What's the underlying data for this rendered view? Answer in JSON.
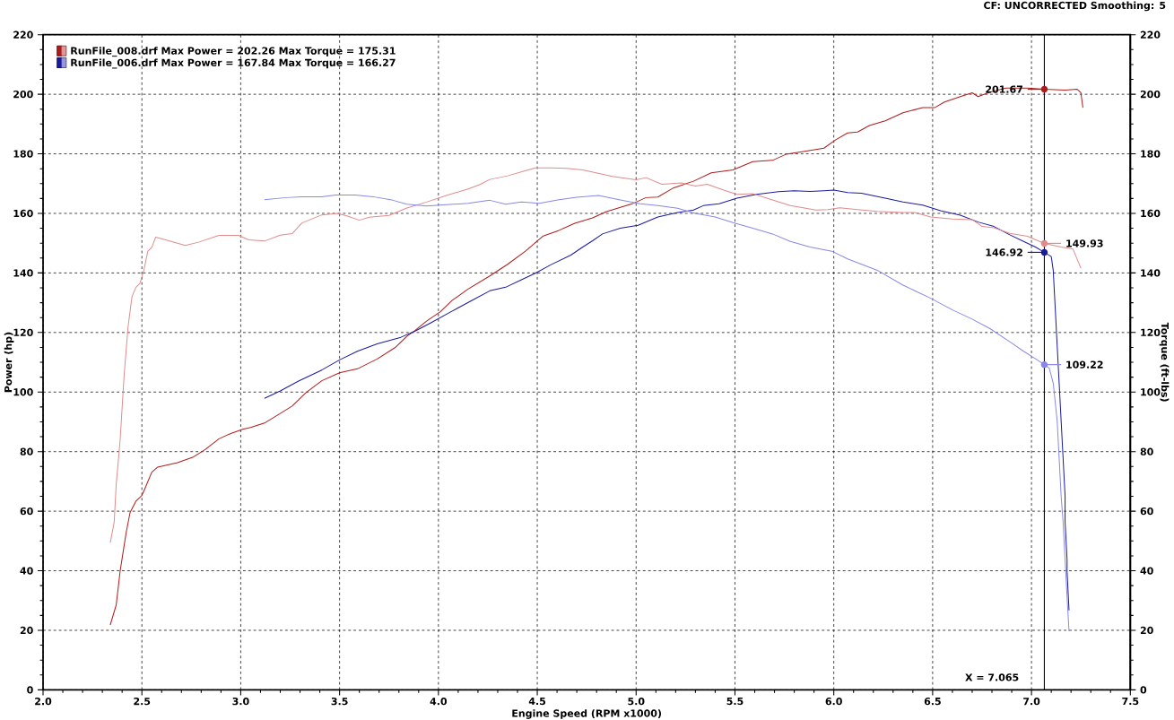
{
  "chart_data": {
    "type": "line",
    "xlabel": "Engine Speed (RPM x1000)",
    "ylabel": "Power (hp)",
    "y2label": "Torque (ft-lbs)",
    "xlim": [
      2.0,
      7.5
    ],
    "ylim": [
      0,
      220
    ],
    "y2lim": [
      0,
      220
    ],
    "xticks": [
      {
        "value": 2,
        "label": "2.0"
      },
      {
        "value": 2.1,
        "label": null
      },
      {
        "value": 2.2,
        "label": null
      },
      {
        "value": 2.3,
        "label": null
      },
      {
        "value": 2.4,
        "label": null
      },
      2.5,
      {
        "value": 2.6,
        "label": null
      },
      {
        "value": 2.7,
        "label": null
      },
      {
        "value": 2.8,
        "label": null
      },
      {
        "value": 2.9,
        "label": null
      },
      {
        "value": 3,
        "label": "3.0"
      },
      {
        "value": 3.1,
        "label": null
      },
      {
        "value": 3.2,
        "label": null
      },
      {
        "value": 3.3,
        "label": null
      },
      {
        "value": 3.4,
        "label": null
      },
      3.5,
      {
        "value": 3.6,
        "label": null
      },
      {
        "value": 3.7,
        "label": null
      },
      {
        "value": 3.8,
        "label": null
      },
      {
        "value": 3.9,
        "label": null
      },
      {
        "value": 4,
        "label": "4.0"
      },
      {
        "value": 4.1,
        "label": null
      },
      {
        "value": 4.2,
        "label": null
      },
      {
        "value": 4.3,
        "label": null
      },
      {
        "value": 4.4,
        "label": null
      },
      4.5,
      {
        "value": 4.6,
        "label": null
      },
      {
        "value": 4.7,
        "label": null
      },
      {
        "value": 4.8,
        "label": null
      },
      {
        "value": 4.9,
        "label": null
      },
      {
        "value": 5,
        "label": "5.0"
      },
      {
        "value": 5.1,
        "label": null
      },
      {
        "value": 5.2,
        "label": null
      },
      {
        "value": 5.3,
        "label": null
      },
      {
        "value": 5.4,
        "label": null
      },
      5.5,
      {
        "value": 5.6,
        "label": null
      },
      {
        "value": 5.7,
        "label": null
      },
      {
        "value": 5.8,
        "label": null
      },
      {
        "value": 5.9,
        "label": null
      },
      {
        "value": 6,
        "label": "6.0"
      },
      {
        "value": 6.1,
        "label": null
      },
      {
        "value": 6.2,
        "label": null
      },
      {
        "value": 6.3,
        "label": null
      },
      {
        "value": 6.4,
        "label": null
      },
      6.5,
      {
        "value": 6.6,
        "label": null
      },
      {
        "value": 6.7,
        "label": null
      },
      {
        "value": 6.8,
        "label": null
      },
      {
        "value": 6.9,
        "label": null
      },
      {
        "value": 7,
        "label": "7.0"
      },
      {
        "value": 7.1,
        "label": null
      },
      {
        "value": 7.2,
        "label": null
      },
      {
        "value": 7.3,
        "label": null
      },
      {
        "value": 7.4,
        "label": null
      },
      7.5
    ],
    "yticks": [
      0,
      {
        "value": 5,
        "label": null
      },
      {
        "value": 10,
        "label": null
      },
      {
        "value": 15,
        "label": null
      },
      20,
      {
        "value": 25,
        "label": null
      },
      {
        "value": 30,
        "label": null
      },
      {
        "value": 35,
        "label": null
      },
      40,
      {
        "value": 45,
        "label": null
      },
      {
        "value": 50,
        "label": null
      },
      {
        "value": 55,
        "label": null
      },
      60,
      {
        "value": 65,
        "label": null
      },
      {
        "value": 70,
        "label": null
      },
      {
        "value": 75,
        "label": null
      },
      80,
      {
        "value": 85,
        "label": null
      },
      {
        "value": 90,
        "label": null
      },
      {
        "value": 95,
        "label": null
      },
      100,
      {
        "value": 105,
        "label": null
      },
      {
        "value": 110,
        "label": null
      },
      {
        "value": 115,
        "label": null
      },
      120,
      {
        "value": 125,
        "label": null
      },
      {
        "value": 130,
        "label": null
      },
      {
        "value": 135,
        "label": null
      },
      140,
      {
        "value": 145,
        "label": null
      },
      {
        "value": 150,
        "label": null
      },
      {
        "value": 155,
        "label": null
      },
      160,
      {
        "value": 165,
        "label": null
      },
      {
        "value": 170,
        "label": null
      },
      {
        "value": 175,
        "label": null
      },
      180,
      {
        "value": 185,
        "label": null
      },
      {
        "value": 190,
        "label": null
      },
      {
        "value": 195,
        "label": null
      },
      200,
      {
        "value": 205,
        "label": null
      },
      {
        "value": 210,
        "label": null
      },
      {
        "value": 215,
        "label": null
      },
      220
    ],
    "y2ticks": [
      0,
      {
        "value": 5,
        "label": null
      },
      {
        "value": 10,
        "label": null
      },
      {
        "value": 15,
        "label": null
      },
      20,
      {
        "value": 25,
        "label": null
      },
      {
        "value": 30,
        "label": null
      },
      {
        "value": 35,
        "label": null
      },
      40,
      {
        "value": 45,
        "label": null
      },
      {
        "value": 50,
        "label": null
      },
      {
        "value": 55,
        "label": null
      },
      60,
      {
        "value": 65,
        "label": null
      },
      {
        "value": 70,
        "label": null
      },
      {
        "value": 75,
        "label": null
      },
      80,
      {
        "value": 85,
        "label": null
      },
      {
        "value": 90,
        "label": null
      },
      {
        "value": 95,
        "label": null
      },
      100,
      {
        "value": 105,
        "label": null
      },
      {
        "value": 110,
        "label": null
      },
      {
        "value": 115,
        "label": null
      },
      120,
      {
        "value": 125,
        "label": null
      },
      {
        "value": 130,
        "label": null
      },
      {
        "value": 135,
        "label": null
      },
      140,
      {
        "value": 145,
        "label": null
      },
      {
        "value": 150,
        "label": null
      },
      {
        "value": 155,
        "label": null
      },
      160,
      {
        "value": 165,
        "label": null
      },
      {
        "value": 170,
        "label": null
      },
      {
        "value": 175,
        "label": null
      },
      180,
      {
        "value": 185,
        "label": null
      },
      {
        "value": 190,
        "label": null
      },
      {
        "value": 195,
        "label": null
      },
      200,
      {
        "value": 205,
        "label": null
      },
      {
        "value": 210,
        "label": null
      },
      {
        "value": 215,
        "label": null
      },
      220
    ],
    "grid": true,
    "legend": "top left",
    "marker": "none",
    "line_style": "solid",
    "series": [
      {
        "name": "RunFile_008.drf Max Power = 202.26 Max Torque = 175.31",
        "color": "#b01c1c",
        "x": [
          2.34,
          2.37,
          2.39,
          2.42,
          2.44,
          2.47,
          2.5,
          2.52,
          2.55,
          2.58,
          2.68,
          2.76,
          2.82,
          2.89,
          2.95,
          3.01,
          3.05,
          3.12,
          3.2,
          3.26,
          3.33,
          3.41,
          3.5,
          3.59,
          3.69,
          3.78,
          3.84,
          3.88,
          3.94,
          4.01,
          4.07,
          4.15,
          4.26,
          4.35,
          4.44,
          4.53,
          4.61,
          4.69,
          4.78,
          4.85,
          4.98,
          5.05,
          5.11,
          5.19,
          5.29,
          5.38,
          5.49,
          5.59,
          5.69,
          5.76,
          5.86,
          5.95,
          6.01,
          6.07,
          6.12,
          6.18,
          6.26,
          6.35,
          6.45,
          6.51,
          6.56,
          6.64,
          6.7,
          6.73,
          6.79,
          6.87,
          6.98,
          7.065,
          7.17,
          7.23,
          7.25,
          7.26
        ],
        "values": [
          21.8,
          28.5,
          39.9,
          52.6,
          59.5,
          63.4,
          65.3,
          68.3,
          73.1,
          74.8,
          76.3,
          78.2,
          80.7,
          84.3,
          86.1,
          87.5,
          88.1,
          89.6,
          92.8,
          95.3,
          99.8,
          103.8,
          106.5,
          107.8,
          111.1,
          114.9,
          118.7,
          120.6,
          123.8,
          127.0,
          130.8,
          134.6,
          139.0,
          142.9,
          147.3,
          152.4,
          154.3,
          156.7,
          158.5,
          160.6,
          163.2,
          165.3,
          165.5,
          168.6,
          170.8,
          173.6,
          174.6,
          177.4,
          177.8,
          179.9,
          180.9,
          181.9,
          184.7,
          187.0,
          187.3,
          189.5,
          191.1,
          193.8,
          195.5,
          195.5,
          197.4,
          199.2,
          200.5,
          199.2,
          200.7,
          202.1,
          202.1,
          201.67,
          201.4,
          201.7,
          200.5,
          195.5
        ],
        "value_labels": [
          null,
          null,
          null,
          null,
          null,
          null,
          null,
          null,
          null,
          null,
          null,
          null,
          null,
          null,
          null,
          null,
          null,
          null,
          null,
          null,
          null,
          null,
          null,
          null,
          null,
          null,
          null,
          null,
          null,
          null,
          null,
          null,
          null,
          null,
          null,
          null,
          null,
          null,
          null,
          null,
          null,
          null,
          null,
          null,
          null,
          null,
          null,
          null,
          null,
          null,
          null,
          null,
          null,
          null,
          null,
          null,
          null,
          null,
          null,
          null,
          null,
          null,
          null,
          null,
          null,
          null,
          null,
          "201.67",
          null,
          null,
          null,
          null
        ]
      },
      {
        "color": "#e08c8c",
        "axis": "y2",
        "x": [
          2.34,
          2.36,
          2.37,
          2.39,
          2.41,
          2.43,
          2.45,
          2.47,
          2.49,
          2.51,
          2.53,
          2.55,
          2.57,
          2.62,
          2.72,
          2.79,
          2.89,
          2.99,
          3.04,
          3.12,
          3.2,
          3.26,
          3.31,
          3.41,
          3.49,
          3.54,
          3.6,
          3.65,
          3.75,
          3.84,
          3.94,
          4.04,
          4.15,
          4.21,
          4.26,
          4.35,
          4.45,
          4.49,
          4.57,
          4.65,
          4.73,
          4.88,
          5.0,
          5.05,
          5.13,
          5.23,
          5.3,
          5.36,
          5.44,
          5.51,
          5.59,
          5.69,
          5.78,
          5.91,
          5.97,
          6.03,
          6.12,
          6.22,
          6.35,
          6.41,
          6.49,
          6.6,
          6.7,
          6.75,
          6.81,
          6.89,
          6.98,
          7.065,
          7.15,
          7.21,
          7.25
        ],
        "values": [
          49.4,
          56.4,
          69.0,
          83.9,
          105.5,
          121.9,
          132.1,
          135.2,
          136.5,
          140.9,
          147.3,
          148.6,
          152.0,
          151.1,
          149.2,
          150.4,
          152.6,
          152.6,
          151.1,
          150.7,
          152.7,
          153.2,
          156.8,
          159.5,
          160.0,
          159.1,
          157.7,
          158.7,
          159.3,
          161.8,
          163.8,
          166.0,
          168.2,
          169.7,
          171.4,
          172.6,
          174.5,
          175.3,
          175.3,
          175.1,
          174.6,
          172.4,
          171.3,
          172.0,
          169.8,
          170.2,
          169.2,
          169.8,
          167.9,
          166.4,
          166.6,
          164.5,
          162.6,
          161.1,
          161.3,
          161.9,
          161.3,
          160.7,
          160.3,
          160.3,
          158.8,
          158.1,
          157.9,
          155.6,
          155.2,
          153.3,
          152.3,
          149.93,
          148.7,
          148.0,
          141.6
        ],
        "value_labels": [
          null,
          null,
          null,
          null,
          null,
          null,
          null,
          null,
          null,
          null,
          null,
          null,
          null,
          null,
          null,
          null,
          null,
          null,
          null,
          null,
          null,
          null,
          null,
          null,
          null,
          null,
          null,
          null,
          null,
          null,
          null,
          null,
          null,
          null,
          null,
          null,
          null,
          null,
          null,
          null,
          null,
          null,
          null,
          null,
          null,
          null,
          null,
          null,
          null,
          null,
          null,
          null,
          null,
          null,
          null,
          null,
          null,
          null,
          null,
          null,
          null,
          null,
          null,
          null,
          null,
          null,
          null,
          "149.93",
          null,
          null,
          null
        ]
      },
      {
        "name": "RunFile_006.drf Max Power = 167.84 Max Torque = 166.27",
        "color": "#1a1aa0",
        "x": [
          3.12,
          3.2,
          3.29,
          3.41,
          3.5,
          3.59,
          3.69,
          3.81,
          3.88,
          3.96,
          4.07,
          4.17,
          4.26,
          4.34,
          4.42,
          4.49,
          4.57,
          4.67,
          4.73,
          4.78,
          4.83,
          4.92,
          5.01,
          5.11,
          5.21,
          5.29,
          5.34,
          5.42,
          5.51,
          5.61,
          5.72,
          5.8,
          5.88,
          5.95,
          6.0,
          6.07,
          6.14,
          6.26,
          6.35,
          6.45,
          6.54,
          6.64,
          6.73,
          6.81,
          6.89,
          6.96,
          7.02,
          7.065,
          7.1,
          7.11,
          7.12,
          7.13,
          7.14,
          7.15,
          7.16,
          7.17,
          7.17,
          7.18,
          7.18,
          7.19
        ],
        "values": [
          97.9,
          100.4,
          103.6,
          107.4,
          110.8,
          113.7,
          116.2,
          118.4,
          120.4,
          123.2,
          127.2,
          130.8,
          134.0,
          135.2,
          137.7,
          139.9,
          142.8,
          146.0,
          148.7,
          150.8,
          153.1,
          155.0,
          156.0,
          158.8,
          160.3,
          161.1,
          162.6,
          163.2,
          165.1,
          166.4,
          167.3,
          167.6,
          167.4,
          167.6,
          167.8,
          167.0,
          166.8,
          165.1,
          163.8,
          162.8,
          160.9,
          159.4,
          157.1,
          155.6,
          152.8,
          150.6,
          148.7,
          146.92,
          145.5,
          140.9,
          128.3,
          115.6,
          103.0,
          90.3,
          77.7,
          65.0,
          56.4,
          43.7,
          39.9,
          26.7
        ],
        "value_labels": [
          null,
          null,
          null,
          null,
          null,
          null,
          null,
          null,
          null,
          null,
          null,
          null,
          null,
          null,
          null,
          null,
          null,
          null,
          null,
          null,
          null,
          null,
          null,
          null,
          null,
          null,
          null,
          null,
          null,
          null,
          null,
          null,
          null,
          null,
          null,
          null,
          null,
          null,
          null,
          null,
          null,
          null,
          null,
          null,
          null,
          null,
          null,
          "146.92",
          null,
          null,
          null,
          null,
          null,
          null,
          null,
          null,
          null,
          null,
          null,
          null
        ]
      },
      {
        "color": "#8888e8",
        "axis": "y2",
        "x": [
          3.12,
          3.23,
          3.31,
          3.41,
          3.48,
          3.58,
          3.67,
          3.77,
          3.84,
          3.94,
          4.04,
          4.15,
          4.26,
          4.34,
          4.42,
          4.51,
          4.61,
          4.7,
          4.81,
          4.92,
          5.02,
          5.11,
          5.21,
          5.3,
          5.4,
          5.49,
          5.59,
          5.69,
          5.78,
          5.88,
          5.99,
          6.07,
          6.22,
          6.35,
          6.49,
          6.6,
          6.7,
          6.79,
          6.89,
          6.96,
          7.02,
          7.065,
          7.09,
          7.11,
          7.13,
          7.14,
          7.15,
          7.16,
          7.17,
          7.18,
          7.19
        ],
        "values": [
          164.6,
          165.3,
          165.6,
          165.6,
          166.2,
          166.2,
          165.6,
          164.4,
          163.1,
          162.5,
          162.9,
          163.4,
          164.4,
          163.1,
          163.8,
          163.4,
          164.6,
          165.4,
          166.0,
          164.5,
          163.2,
          162.6,
          161.7,
          160.0,
          158.8,
          156.9,
          155.0,
          153.1,
          150.6,
          148.7,
          147.3,
          144.7,
          140.9,
          135.9,
          131.5,
          127.6,
          124.5,
          121.3,
          116.9,
          113.7,
          111.2,
          109.22,
          108.0,
          103.0,
          90.3,
          77.7,
          65.0,
          56.4,
          43.7,
          31.1,
          19.7
        ],
        "value_labels": [
          null,
          null,
          null,
          null,
          null,
          null,
          null,
          null,
          null,
          null,
          null,
          null,
          null,
          null,
          null,
          null,
          null,
          null,
          null,
          null,
          null,
          null,
          null,
          null,
          null,
          null,
          null,
          null,
          null,
          null,
          null,
          null,
          null,
          null,
          null,
          null,
          null,
          null,
          null,
          null,
          null,
          "109.22",
          null,
          null,
          null,
          null,
          null,
          null,
          null,
          null,
          null
        ]
      }
    ],
    "ref_lines": [
      {
        "axis": "x",
        "value": 7.065,
        "label": "X = 7.065"
      }
    ],
    "annotations": [
      "CF: UNCORRECTED Smoothing: 5"
    ]
  }
}
